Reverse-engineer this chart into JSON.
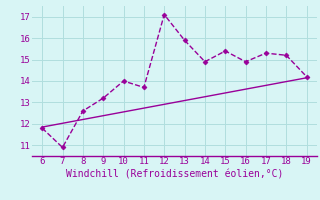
{
  "xlabel": "Windchill (Refroidissement éolien,°C)",
  "x_data": [
    6,
    7,
    8,
    9,
    10,
    11,
    12,
    13,
    14,
    15,
    16,
    17,
    18,
    19
  ],
  "y_data": [
    11.8,
    10.9,
    12.6,
    13.2,
    14.0,
    13.7,
    17.1,
    15.9,
    14.9,
    15.4,
    14.9,
    15.3,
    15.2,
    14.2
  ],
  "trend_x": [
    6,
    19
  ],
  "trend_y": [
    11.85,
    14.15
  ],
  "line_color": "#990099",
  "marker_color": "#990099",
  "bg_color": "#d8f5f5",
  "grid_color": "#b0dede",
  "text_color": "#990099",
  "xlim": [
    5.5,
    19.5
  ],
  "ylim": [
    10.5,
    17.5
  ],
  "xticks": [
    6,
    7,
    8,
    9,
    10,
    11,
    12,
    13,
    14,
    15,
    16,
    17,
    18,
    19
  ],
  "yticks": [
    11,
    12,
    13,
    14,
    15,
    16,
    17
  ]
}
